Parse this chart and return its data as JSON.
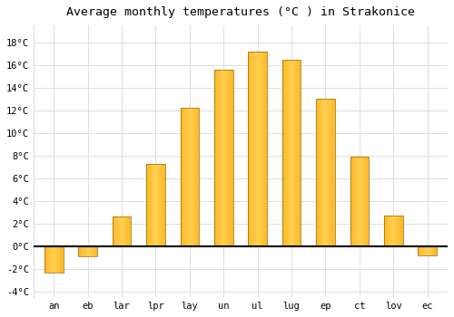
{
  "months": [
    "an",
    "eb",
    "lar",
    "lpr",
    "lay",
    "un",
    "ul",
    "lug",
    "ep",
    "ct",
    "lov",
    "ec"
  ],
  "temperatures": [
    -2.3,
    -0.9,
    2.6,
    7.3,
    12.2,
    15.6,
    17.2,
    16.5,
    13.0,
    7.9,
    2.7,
    -0.8
  ],
  "bar_color_light": "#FFD050",
  "bar_color_dark": "#FFA000",
  "bar_edge_color": "#996600",
  "title": "Average monthly temperatures (°C ) in Strakonice",
  "ylim": [
    -4.5,
    19.5
  ],
  "yticks": [
    -4,
    -2,
    0,
    2,
    4,
    6,
    8,
    10,
    12,
    14,
    16,
    18
  ],
  "ytick_labels": [
    "-4°C",
    "-2°C",
    "0°C",
    "2°C",
    "4°C",
    "6°C",
    "8°C",
    "10°C",
    "12°C",
    "14°C",
    "16°C",
    "18°C"
  ],
  "background_color": "#ffffff",
  "plot_bg_color": "#ffffff",
  "grid_color": "#dddddd",
  "title_fontsize": 9.5,
  "tick_fontsize": 7.5,
  "bar_width": 0.55
}
